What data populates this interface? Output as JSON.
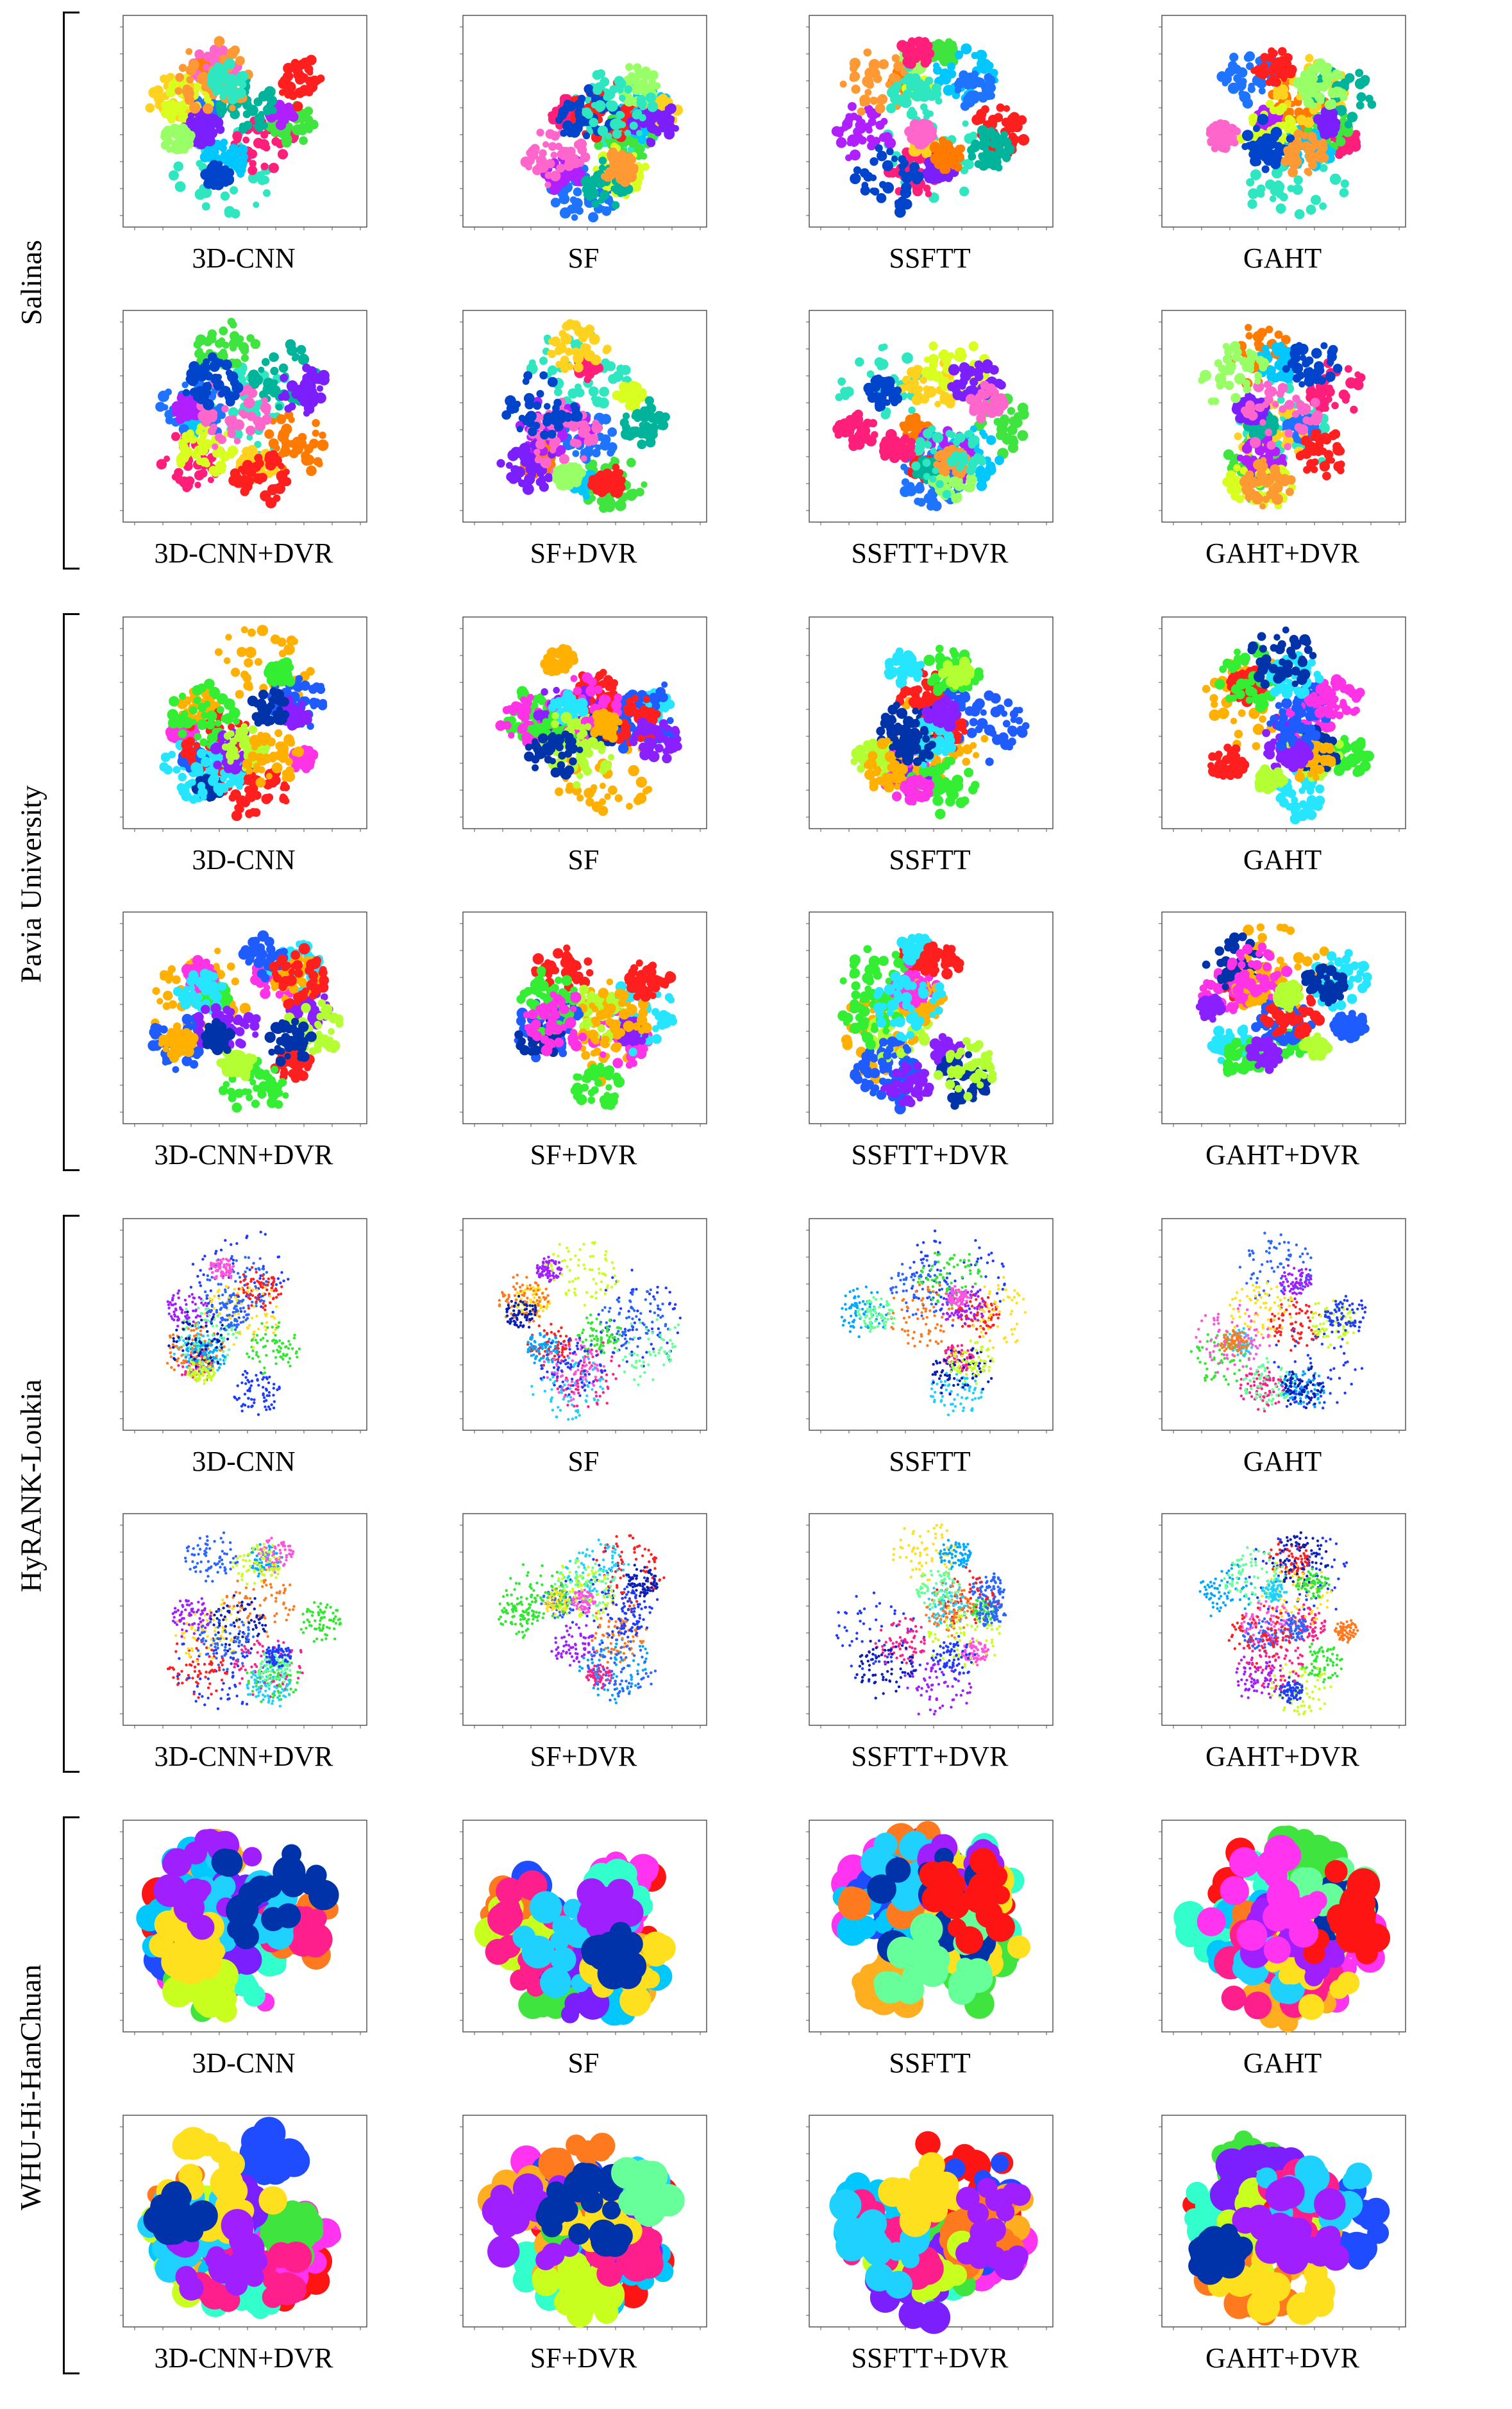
{
  "figure": {
    "groups": [
      {
        "label": "Salinas",
        "palette": [
          "#2ee6c0",
          "#ff1f7a",
          "#ff7a00",
          "#3fe43f",
          "#00c8ff",
          "#1f74ff",
          "#ffd21f",
          "#b01fff",
          "#ff1f1f",
          "#d8ff1f",
          "#00b39b",
          "#7b1fff",
          "#ff66cc",
          "#0044cc",
          "#99ff66",
          "#ff9933"
        ],
        "rows": [
          [
            "3D-CNN",
            "SF",
            "SSFTT",
            "GAHT"
          ],
          [
            "3D-CNN+DVR",
            "SF+DVR",
            "SSFTT+DVR",
            "GAHT+DVR"
          ]
        ]
      },
      {
        "label": "Pavia University",
        "palette": [
          "#ffb000",
          "#1f5cff",
          "#ff1f1f",
          "#33ee33",
          "#ff33e6",
          "#26e6ff",
          "#8a1fff",
          "#b3ff33",
          "#0033aa"
        ],
        "rows": [
          [
            "3D-CNN",
            "SF",
            "SSFTT",
            "GAHT"
          ],
          [
            "3D-CNN+DVR",
            "SF+DVR",
            "SSFTT+DVR",
            "GAHT+DVR"
          ]
        ]
      },
      {
        "label": "HyRANK-Loukia",
        "palette": [
          "#1f3cff",
          "#2a66ff",
          "#33e633",
          "#ff1f8c",
          "#ff1f1f",
          "#ffe01f",
          "#a01fff",
          "#1fd1ff",
          "#00a8ff",
          "#ff7a1f",
          "#66ff99",
          "#0b1fb3",
          "#ff55dd",
          "#c8ff1f"
        ],
        "rows": [
          [
            "3D-CNN",
            "SF",
            "SSFTT",
            "GAHT"
          ],
          [
            "3D-CNN+DVR",
            "SF+DVR",
            "SSFTT+DVR",
            "GAHT+DVR"
          ]
        ]
      },
      {
        "label": "WHU-Hi-HanChuan",
        "palette": [
          "#ff1414",
          "#ff33f0",
          "#1f4cff",
          "#33ffcc",
          "#ffae1f",
          "#3fe43f",
          "#00c8ff",
          "#7b1fff",
          "#ff7a1f",
          "#c8ff1f",
          "#ff1f8c",
          "#1fd1ff",
          "#ffe01f",
          "#a01fff",
          "#0033aa",
          "#66ff99"
        ],
        "rows": [
          [
            "3D-CNN",
            "SF",
            "SSFTT",
            "GAHT"
          ],
          [
            "3D-CNN+DVR",
            "SF+DVR",
            "SSFTT+DVR",
            "GAHT+DVR"
          ]
        ]
      }
    ]
  }
}
